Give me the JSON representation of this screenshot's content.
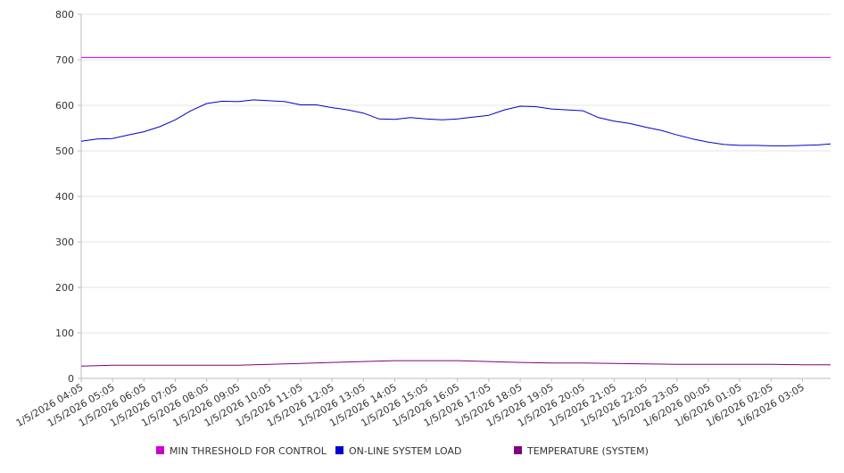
{
  "chart_data": {
    "type": "line",
    "title": "",
    "xlabel": "",
    "ylabel": "",
    "ylim": [
      0,
      800
    ],
    "y_ticks": [
      0,
      100,
      200,
      300,
      400,
      500,
      600,
      700,
      800
    ],
    "grid": "horizontal",
    "legend_position": "bottom",
    "x_tick_labels": [
      "1/5/2026 04:05",
      "1/5/2026 05:05",
      "1/5/2026 06:05",
      "1/5/2026 07:05",
      "1/5/2026 08:05",
      "1/5/2026 09:05",
      "1/5/2026 10:05",
      "1/5/2026 11:05",
      "1/5/2026 12:05",
      "1/5/2026 13:05",
      "1/5/2026 14:05",
      "1/5/2026 15:05",
      "1/5/2026 16:05",
      "1/5/2026 17:05",
      "1/5/2026 18:05",
      "1/5/2026 19:05",
      "1/5/2026 20:05",
      "1/5/2026 21:05",
      "1/5/2026 22:05",
      "1/5/2026 23:05",
      "1/6/2026 00:05",
      "1/6/2026 01:05",
      "1/6/2026 02:05",
      "1/6/2026 03:05"
    ],
    "x_range": [
      "1/5/2026 04:05",
      "1/6/2026 03:59"
    ],
    "series": [
      {
        "name": "MIN THRESHOLD FOR CONTROL",
        "color": "#cc00cc",
        "x": [
          "1/5/2026 04:05",
          "1/6/2026 03:59"
        ],
        "values": [
          705,
          705
        ]
      },
      {
        "name": "ON-LINE SYSTEM LOAD",
        "color": "#0000cc",
        "x": [
          "1/5/2026 04:05",
          "1/5/2026 04:35",
          "1/5/2026 05:05",
          "1/5/2026 05:35",
          "1/5/2026 06:05",
          "1/5/2026 06:35",
          "1/5/2026 07:05",
          "1/5/2026 07:35",
          "1/5/2026 08:05",
          "1/5/2026 08:35",
          "1/5/2026 09:05",
          "1/5/2026 09:35",
          "1/5/2026 10:05",
          "1/5/2026 10:35",
          "1/5/2026 11:05",
          "1/5/2026 11:35",
          "1/5/2026 12:05",
          "1/5/2026 12:35",
          "1/5/2026 13:05",
          "1/5/2026 13:35",
          "1/5/2026 14:05",
          "1/5/2026 14:35",
          "1/5/2026 15:05",
          "1/5/2026 15:35",
          "1/5/2026 16:05",
          "1/5/2026 16:35",
          "1/5/2026 17:05",
          "1/5/2026 17:35",
          "1/5/2026 18:05",
          "1/5/2026 18:35",
          "1/5/2026 19:05",
          "1/5/2026 19:35",
          "1/5/2026 20:05",
          "1/5/2026 20:35",
          "1/5/2026 21:05",
          "1/5/2026 21:35",
          "1/5/2026 22:05",
          "1/5/2026 22:35",
          "1/5/2026 23:05",
          "1/5/2026 23:35",
          "1/6/2026 00:05",
          "1/6/2026 00:35",
          "1/6/2026 01:05",
          "1/6/2026 01:35",
          "1/6/2026 02:05",
          "1/6/2026 02:35",
          "1/6/2026 03:05",
          "1/6/2026 03:35",
          "1/6/2026 03:59"
        ],
        "values": [
          521,
          526,
          527,
          535,
          542,
          553,
          568,
          588,
          604,
          609,
          608,
          612,
          610,
          608,
          601,
          601,
          595,
          590,
          583,
          570,
          569,
          573,
          570,
          568,
          570,
          574,
          578,
          590,
          598,
          597,
          592,
          590,
          588,
          573,
          565,
          560,
          552,
          545,
          535,
          526,
          519,
          514,
          512,
          512,
          511,
          511,
          512,
          513,
          515
        ]
      },
      {
        "name": "TEMPERATURE (SYSTEM)",
        "color": "#800080",
        "x": [
          "1/5/2026 04:05",
          "1/5/2026 05:05",
          "1/5/2026 06:05",
          "1/5/2026 07:05",
          "1/5/2026 08:05",
          "1/5/2026 09:05",
          "1/5/2026 10:05",
          "1/5/2026 11:05",
          "1/5/2026 12:05",
          "1/5/2026 13:05",
          "1/5/2026 14:05",
          "1/5/2026 15:05",
          "1/5/2026 16:05",
          "1/5/2026 17:05",
          "1/5/2026 18:05",
          "1/5/2026 19:05",
          "1/5/2026 20:05",
          "1/5/2026 21:05",
          "1/5/2026 22:05",
          "1/5/2026 23:05",
          "1/6/2026 00:05",
          "1/6/2026 01:05",
          "1/6/2026 02:05",
          "1/6/2026 03:05",
          "1/6/2026 03:59"
        ],
        "values": [
          27,
          29,
          29,
          29,
          29,
          29,
          31,
          33,
          35,
          37,
          39,
          39,
          39,
          37,
          35,
          34,
          34,
          33,
          32,
          31,
          31,
          31,
          31,
          30,
          30
        ]
      }
    ]
  }
}
